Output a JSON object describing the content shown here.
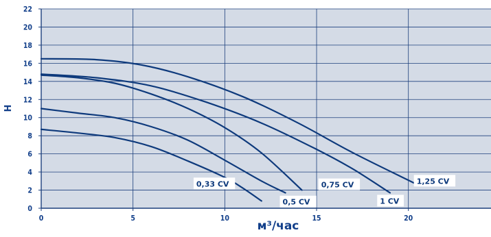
{
  "chart_data": {
    "type": "line",
    "title": "",
    "xlabel": "м³/час",
    "ylabel": "Н",
    "xlim": [
      0,
      24.5
    ],
    "ylim": [
      0,
      22
    ],
    "x_ticks": [
      0,
      5,
      10,
      15,
      20
    ],
    "y_ticks": [
      0,
      2,
      4,
      6,
      8,
      10,
      12,
      14,
      16,
      18,
      20,
      22
    ],
    "grid": true,
    "background_color": "#d4dbe6",
    "grid_color": "#1c3f7c",
    "line_color": "#0e3a7c",
    "series": [
      {
        "name": "0,33 CV",
        "points": [
          [
            0,
            8.7
          ],
          [
            2,
            8.3
          ],
          [
            4,
            7.8
          ],
          [
            6,
            6.8
          ],
          [
            8,
            5.2
          ],
          [
            10,
            3.4
          ],
          [
            11,
            2.2
          ],
          [
            12,
            0.8
          ]
        ]
      },
      {
        "name": "0,5 CV",
        "points": [
          [
            0,
            11.0
          ],
          [
            2,
            10.5
          ],
          [
            4,
            10.0
          ],
          [
            6,
            9.0
          ],
          [
            8,
            7.5
          ],
          [
            10,
            5.3
          ],
          [
            12,
            3.0
          ],
          [
            13.3,
            1.7
          ]
        ]
      },
      {
        "name": "0,75 CV",
        "points": [
          [
            0,
            14.7
          ],
          [
            2,
            14.4
          ],
          [
            4,
            13.8
          ],
          [
            6,
            12.6
          ],
          [
            8,
            11.0
          ],
          [
            10,
            8.9
          ],
          [
            12,
            6.1
          ],
          [
            14.2,
            2.0
          ]
        ]
      },
      {
        "name": "1 CV",
        "points": [
          [
            0,
            14.8
          ],
          [
            3,
            14.4
          ],
          [
            6,
            13.5
          ],
          [
            9,
            11.7
          ],
          [
            12,
            9.4
          ],
          [
            15,
            6.5
          ],
          [
            17,
            4.3
          ],
          [
            19,
            1.7
          ]
        ]
      },
      {
        "name": "1,25 CV",
        "points": [
          [
            0,
            16.5
          ],
          [
            3,
            16.4
          ],
          [
            5.5,
            15.8
          ],
          [
            8,
            14.5
          ],
          [
            11,
            12.3
          ],
          [
            14,
            9.4
          ],
          [
            17,
            6.1
          ],
          [
            20.3,
            2.8
          ]
        ]
      }
    ],
    "labels": [
      {
        "text": "0,33 CV",
        "x": 8.3,
        "y": 2.7
      },
      {
        "text": "0,5 CV",
        "x": 13.0,
        "y": 0.7
      },
      {
        "text": "0,75 CV",
        "x": 15.1,
        "y": 2.6
      },
      {
        "text": "1 CV",
        "x": 18.3,
        "y": 0.8
      },
      {
        "text": "1,25 CV",
        "x": 20.3,
        "y": 3.0
      }
    ]
  }
}
